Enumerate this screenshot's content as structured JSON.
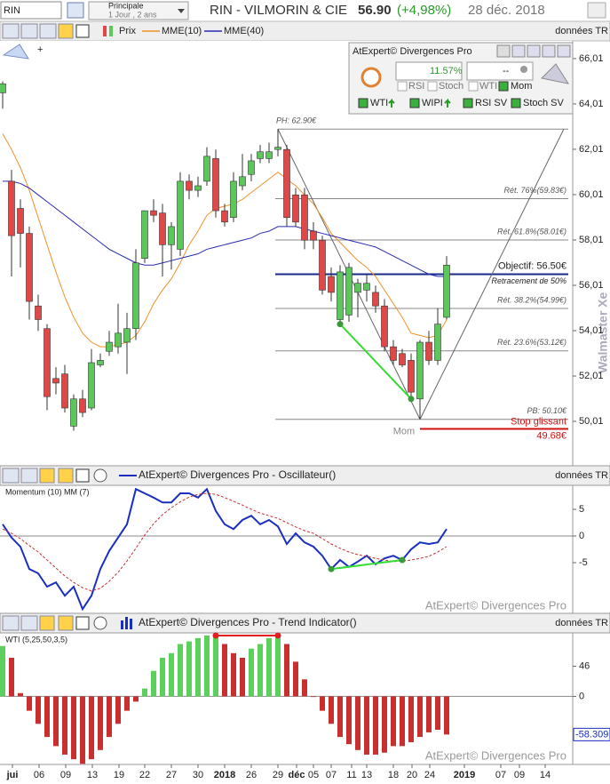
{
  "header": {
    "symbol": "RIN",
    "view": "Principale",
    "period": "1 Jour , 2 ans",
    "title": "RIN - VILMORIN & CIE",
    "price": "56.90",
    "change": "(+4,98%)",
    "date": "28 déc. 2018"
  },
  "toolbar": {
    "price": "Prix",
    "ema10": "MME(10)",
    "ema40": "MME(40)",
    "feed": "données TR"
  },
  "indicator_box": {
    "title": "AtExpert© Divergences Pro",
    "score": "11.57%",
    "dash": "--",
    "filters": [
      "RSI",
      "Stoch",
      "WTI",
      "Mom"
    ],
    "signals": [
      "WTI",
      "WIPI",
      "RSI SV",
      "Stoch SV"
    ]
  },
  "watermark": "Walmaster Xe",
  "chart_data": [
    {
      "type": "candlestick",
      "up_color": "#5cc85c",
      "down_color": "#e04848",
      "open": [
        64.5,
        60.6,
        59.4,
        58.3,
        55.1,
        54.1,
        51.9,
        52.1,
        49.8,
        51.0,
        50.6,
        52.5,
        53.1,
        53.3,
        53.5,
        54.1,
        57.2,
        59.3,
        59.2,
        57.8,
        57.6,
        60.6,
        60.2,
        60.6,
        61.6,
        59.3,
        59.0,
        60.4,
        60.9,
        61.6,
        61.6,
        62.0,
        62.0,
        60.0,
        60.0,
        58.4,
        58.0,
        56.4,
        54.5,
        54.7,
        55.7,
        55.8,
        55.7,
        55.1,
        53.3,
        53.0,
        52.7,
        51.0,
        53.5,
        52.7,
        54.6
      ],
      "high": [
        65.0,
        61.1,
        59.8,
        58.6,
        55.6,
        54.3,
        52.4,
        52.5,
        51.2,
        51.4,
        53.2,
        53.0,
        54.0,
        55.2,
        54.8,
        57.6,
        59.3,
        59.8,
        59.6,
        58.8,
        61.0,
        60.9,
        60.8,
        62.1,
        62.0,
        59.6,
        61.0,
        61.8,
        61.8,
        62.2,
        62.3,
        62.9,
        62.2,
        60.3,
        60.3,
        58.8,
        58.2,
        56.8,
        56.9,
        57.0,
        56.3,
        56.5,
        56.0,
        55.4,
        53.6,
        53.2,
        53.0,
        53.6,
        54.0,
        55.0,
        57.3
      ],
      "low": [
        63.8,
        56.4,
        56.8,
        54.5,
        54.0,
        50.5,
        51.2,
        50.4,
        49.6,
        50.2,
        50.5,
        52.4,
        52.9,
        53.0,
        52.1,
        53.6,
        57.0,
        58.8,
        56.4,
        56.7,
        57.3,
        59.8,
        59.9,
        60.4,
        59.0,
        58.6,
        58.8,
        60.2,
        60.6,
        61.4,
        61.4,
        61.7,
        58.6,
        58.6,
        57.6,
        57.6,
        55.6,
        55.3,
        54.3,
        54.4,
        54.6,
        55.3,
        54.8,
        53.1,
        52.5,
        52.4,
        51.0,
        50.1,
        52.5,
        52.5,
        54.5
      ],
      "close": [
        64.9,
        58.2,
        58.3,
        55.3,
        54.5,
        51.1,
        51.7,
        50.6,
        51.0,
        50.4,
        52.6,
        52.7,
        53.5,
        53.9,
        54.1,
        57.0,
        59.3,
        59.1,
        57.8,
        58.6,
        60.6,
        60.2,
        60.4,
        61.7,
        59.3,
        58.8,
        60.6,
        60.8,
        61.5,
        61.9,
        61.9,
        62.1,
        59.0,
        58.8,
        58.0,
        58.0,
        55.8,
        55.7,
        56.6,
        56.8,
        56.1,
        56.1,
        55.1,
        53.3,
        52.7,
        52.5,
        51.3,
        53.5,
        52.7,
        54.3,
        56.9
      ],
      "lines": [
        {
          "color": "#f0902a",
          "values": [
            62.7,
            62.0,
            61.2,
            60.2,
            59.0,
            57.8,
            56.6,
            55.5,
            54.6,
            53.9,
            53.5,
            53.3,
            53.3,
            53.4,
            53.5,
            53.8,
            54.4,
            55.2,
            55.8,
            56.3,
            57.0,
            57.8,
            58.4,
            59.1,
            59.4,
            59.5,
            59.6,
            59.8,
            60.1,
            60.4,
            60.7,
            61.0,
            60.7,
            60.4,
            60.0,
            59.6,
            59.0,
            58.3,
            57.9,
            57.5,
            57.1,
            56.8,
            56.4,
            55.8,
            55.2,
            54.6,
            53.9,
            53.8,
            53.7,
            53.8,
            54.5
          ]
        },
        {
          "color": "#2a2ab0",
          "values": [
            60.6,
            60.6,
            60.5,
            60.3,
            60.0,
            59.7,
            59.4,
            59.1,
            58.8,
            58.5,
            58.2,
            57.9,
            57.6,
            57.4,
            57.2,
            57.0,
            56.9,
            56.9,
            57.0,
            57.1,
            57.2,
            57.3,
            57.4,
            57.6,
            57.7,
            57.8,
            57.9,
            58.0,
            58.1,
            58.3,
            58.4,
            58.6,
            58.6,
            58.6,
            58.5,
            58.4,
            58.3,
            58.2,
            58.1,
            58.0,
            57.9,
            57.8,
            57.7,
            57.5,
            57.3,
            57.1,
            56.9,
            56.7,
            56.5,
            56.4,
            56.4
          ]
        }
      ],
      "ylim": [
        48.13,
        66.79
      ],
      "yticks": [
        {
          "value": 66.01,
          "label": "66,01"
        },
        {
          "value": 64.01,
          "label": "64,01"
        },
        {
          "value": 62.01,
          "label": "62,01"
        },
        {
          "value": 60.01,
          "label": "60,01"
        },
        {
          "value": 58.01,
          "label": "58,01"
        },
        {
          "value": 56.01,
          "label": "56,01"
        },
        {
          "value": 54.01,
          "label": "54,01"
        },
        {
          "value": 52.01,
          "label": "52,01"
        },
        {
          "value": 50.01,
          "label": "50,01"
        }
      ],
      "levels": [
        {
          "label": "PH: 62.90€",
          "value": 62.9,
          "color": "#888888"
        },
        {
          "label": "Rét. 76%(59.83€)",
          "value": 59.83,
          "color": "#888888"
        },
        {
          "label": "Rét. 61.8%(58.01€)",
          "value": 58.01,
          "color": "#888888"
        },
        {
          "label": "Objectif: 56.50€",
          "sublabel": "Retracement de 50%",
          "value": 56.5,
          "color": "#1a2a8a"
        },
        {
          "label": "Rét. 38.2%(54.99€)",
          "value": 54.99,
          "color": "#888888"
        },
        {
          "label": "Rét. 23.6%(53.12€)",
          "value": 53.12,
          "color": "#888888"
        },
        {
          "label": "PB: 50.10€",
          "value": 50.1,
          "color": "#888888"
        },
        {
          "label": "Stop glissant",
          "value_label": "49.68€",
          "value": 49.68,
          "color": "#d01010"
        }
      ],
      "annotation": "Mom"
    },
    {
      "type": "line",
      "title": "AtExpert© Divergences Pro - Oscillateur()",
      "label": "Momentum (10) MM (7)",
      "feed": "données TR",
      "watermark": "AtExpert© Divergences Pro",
      "series": [
        {
          "color": "#1a2fc0",
          "values": [
            2.2,
            -0.3,
            -2,
            -6.2,
            -7,
            -9.5,
            -8.7,
            -11.2,
            -9.5,
            -13.7,
            -11.2,
            -6.2,
            -2.8,
            -0.3,
            2.2,
            8.8,
            8,
            7.2,
            6.3,
            6.3,
            8,
            8,
            7.2,
            8.8,
            4.7,
            2.2,
            1.3,
            3,
            3.8,
            2.2,
            3,
            1.8,
            -1.5,
            0.5,
            -1.2,
            -2,
            -3.7,
            -6.2,
            -4.5,
            -5.8,
            -4.8,
            -3.7,
            -5.3,
            -4.2,
            -3.7,
            -4.5,
            -2.5,
            -1.2,
            -1.5,
            -1.2,
            1.3
          ]
        },
        {
          "color": "#c83030",
          "values": [
            1.3,
            0.5,
            -0.5,
            -1.8,
            -3,
            -4.5,
            -6,
            -7.5,
            -8.7,
            -9.7,
            -10.3,
            -9.8,
            -8.5,
            -6.8,
            -4.7,
            -2.3,
            0.2,
            2.3,
            4,
            5.3,
            6.4,
            7.3,
            7.8,
            8,
            7.8,
            7.2,
            6.5,
            5.8,
            5,
            4.3,
            3.8,
            3.3,
            2.5,
            1.7,
            1,
            0.5,
            -0.5,
            -1.5,
            -2.3,
            -3,
            -3.5,
            -3.8,
            -4.2,
            -4.5,
            -4.8,
            -4.7,
            -4.5,
            -4.2,
            -3.8,
            -3,
            -2
          ]
        }
      ],
      "ylim": [
        -14.5,
        9.5
      ],
      "yticks": [
        5,
        0,
        -5
      ]
    },
    {
      "type": "bar",
      "title": "AtExpert© Divergences Pro - Trend Indicator()",
      "label": "WTI (5,25,50,3,5)",
      "feed": "données TR",
      "watermark": "AtExpert© Divergences Pro",
      "up_color": "#5cd05c",
      "down_color": "#c83030",
      "values": [
        77,
        59,
        5,
        -22,
        -42,
        -62,
        -76,
        -89,
        -96,
        -103,
        -96,
        -82,
        -62,
        -42,
        -22,
        -8,
        12,
        39,
        59,
        66,
        80,
        84,
        89,
        93,
        93,
        80,
        66,
        59,
        73,
        80,
        89,
        93,
        80,
        53,
        26,
        -1,
        -22,
        -42,
        -62,
        -73,
        -82,
        -89,
        -89,
        -86,
        -76,
        -76,
        -70,
        -62,
        -55,
        -51,
        -58.309
      ],
      "ylim": [
        -104,
        97
      ],
      "yticks": [
        46,
        0
      ]
    }
  ],
  "x_axis_labels": [
    "jui",
    "06",
    "09",
    "13",
    "19",
    "22",
    "27",
    "30",
    "2018",
    "26",
    "29",
    "déc",
    "05",
    "07",
    "11",
    "13",
    "18",
    "20",
    "24",
    "2019",
    "07",
    "09",
    "14"
  ]
}
